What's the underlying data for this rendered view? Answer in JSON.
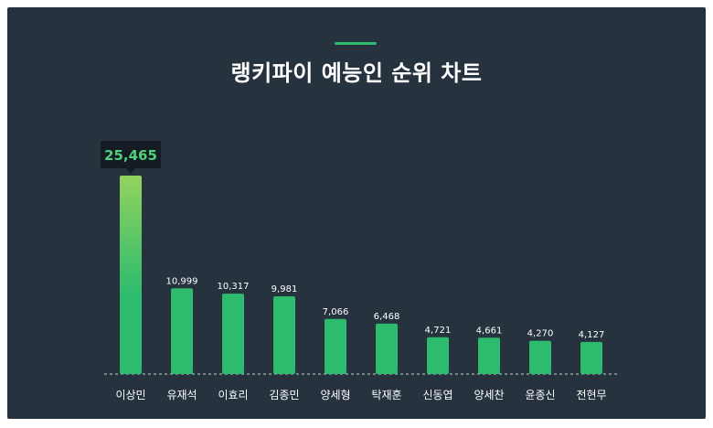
{
  "chart_title": "랭키파이 예능인 순위 차트",
  "colors": {
    "background": "#26333f",
    "bar": "#2dbb6e",
    "top_bar_gradient_start": "#92d35e",
    "highlight_value": "#4fd07d",
    "tooltip_bg": "#141b22",
    "value_label": "#ffffff",
    "category_label": "#ffffff"
  },
  "chart_data": {
    "type": "bar",
    "title": "랭키파이 예능인 순위 차트",
    "xlabel": "",
    "ylabel": "",
    "categories": [
      "이상민",
      "유재석",
      "이효리",
      "김종민",
      "양세형",
      "탁재훈",
      "신동엽",
      "양세찬",
      "윤종신",
      "전현무"
    ],
    "values": [
      25465,
      10999,
      10317,
      9981,
      7066,
      6468,
      4721,
      4661,
      4270,
      4127
    ],
    "value_labels": [
      "25,465",
      "10,999",
      "10,317",
      "9,981",
      "7,066",
      "6,468",
      "4,721",
      "4,661",
      "4,270",
      "4,127"
    ],
    "highlighted_index": 0,
    "grid": false,
    "legend": "none"
  }
}
